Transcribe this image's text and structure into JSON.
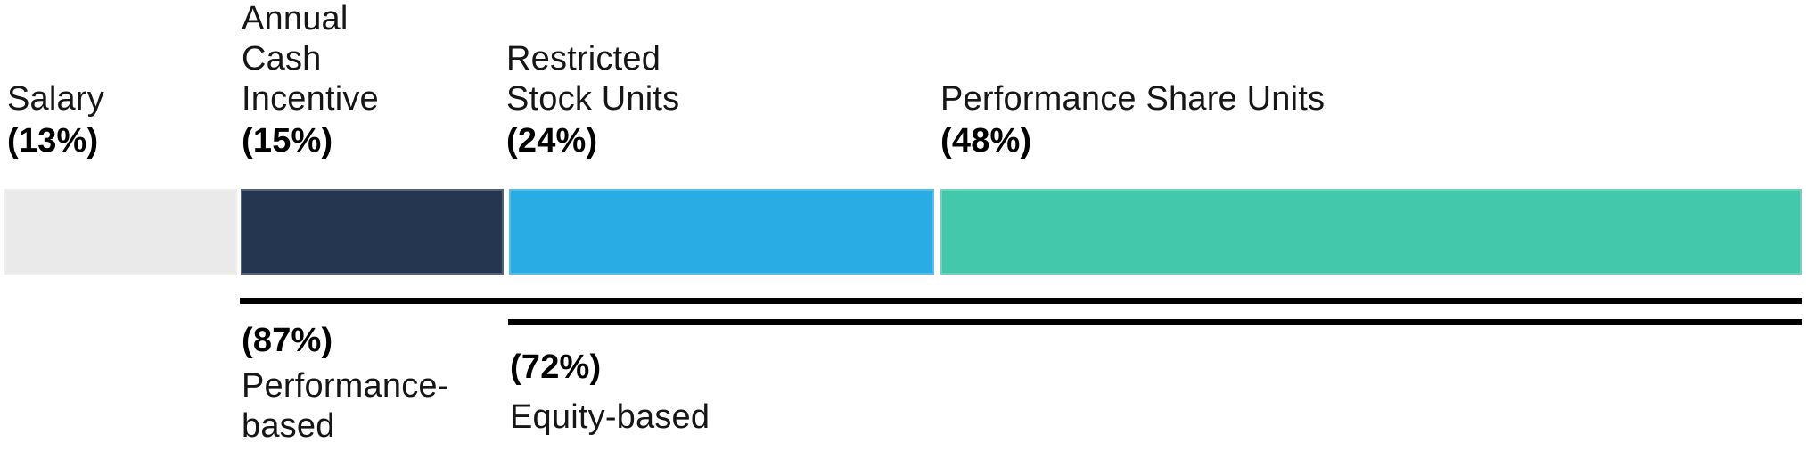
{
  "chart_data": {
    "type": "bar",
    "variant": "horizontal-stacked-percentage",
    "title": "",
    "categories": [
      "Salary",
      "Annual Cash Incentive",
      "Restricted Stock Units",
      "Performance Share Units"
    ],
    "values": [
      13,
      15,
      24,
      48
    ],
    "unit": "%",
    "colors": [
      "#EAEAEA",
      "#253650",
      "#29ACE3",
      "#44C8AB"
    ],
    "xlim": [
      0,
      100
    ],
    "grid": false,
    "legend": "none",
    "brackets": [
      {
        "label": "Performance-based",
        "value": 87,
        "spans": [
          "Annual Cash Incentive",
          "Restricted Stock Units",
          "Performance Share Units"
        ]
      },
      {
        "label": "Equity-based",
        "value": 72,
        "spans": [
          "Restricted Stock Units",
          "Performance Share Units"
        ]
      }
    ]
  },
  "top_labels": [
    {
      "name": "Salary",
      "pct": "(13%)"
    },
    {
      "name": "Annual\nCash\nIncentive",
      "pct": "(15%)"
    },
    {
      "name": "Restricted\nStock Units",
      "pct": "(24%)"
    },
    {
      "name": "Performance Share Units",
      "pct": "(48%)"
    }
  ],
  "bar": {
    "segments": [
      {
        "key": "salary",
        "color": "#EAEAEA"
      },
      {
        "key": "annual-cash-incentive",
        "color": "#253650"
      },
      {
        "key": "restricted-stock-units",
        "color": "#29ACE3"
      },
      {
        "key": "performance-share-units",
        "color": "#44C8AB"
      }
    ]
  },
  "bracket_labels": [
    {
      "pct": "(87%)",
      "name": "Performance-\nbased"
    },
    {
      "pct": "(72%)",
      "name": "Equity-based"
    }
  ],
  "colors": {
    "bracket_line": "#000000",
    "text": "#111111",
    "background": "#FFFFFF"
  }
}
